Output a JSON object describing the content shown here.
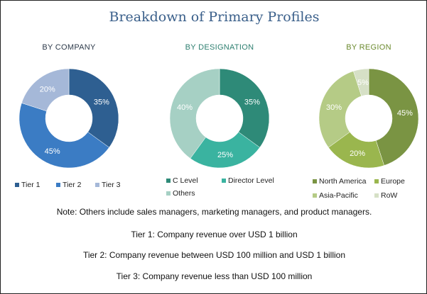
{
  "title": "Breakdown of Primary Profiles",
  "chart_data": [
    {
      "type": "pie",
      "title": "BY COMPANY",
      "title_color": "#2d3a4a",
      "categories": [
        "Tier 1",
        "Tier 2",
        "Tier 3"
      ],
      "values": [
        35,
        45,
        20
      ],
      "labels": [
        "35%",
        "45%",
        "20%"
      ],
      "colors": [
        "#2e5f91",
        "#3b7cc4",
        "#a5b8d8"
      ]
    },
    {
      "type": "pie",
      "title": "BY DESIGNATION",
      "title_color": "#2e7f70",
      "categories": [
        "C Level",
        "Director Level",
        "Others"
      ],
      "values": [
        35,
        25,
        40
      ],
      "labels": [
        "35%",
        "25%",
        "40%"
      ],
      "colors": [
        "#2e8a78",
        "#3ab3a0",
        "#a6d0c4"
      ]
    },
    {
      "type": "pie",
      "title": "BY REGION",
      "title_color": "#6b8a2e",
      "categories": [
        "North America",
        "Europe",
        "Asia-Pacific",
        "RoW"
      ],
      "values": [
        45,
        20,
        30,
        5
      ],
      "labels": [
        "45%",
        "20%",
        "30%",
        "5%"
      ],
      "colors": [
        "#7a9443",
        "#9ab64e",
        "#b5cb86",
        "#d6e0c6"
      ]
    }
  ],
  "notes": [
    "Note: Others include sales managers, marketing managers, and product managers.",
    "Tier 1: Company revenue over USD 1 billion",
    "Tier 2: Company revenue between USD 100 million and USD 1 billion",
    "Tier 3: Company revenue less than USD 100 million"
  ]
}
